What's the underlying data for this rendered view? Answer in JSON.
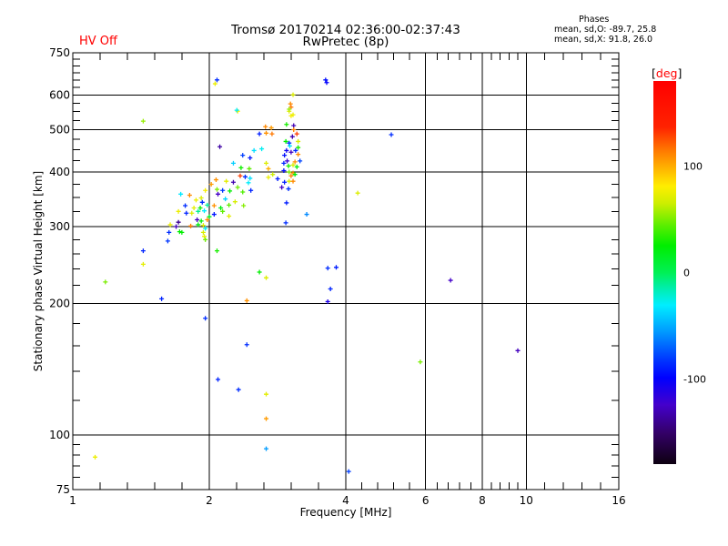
{
  "header": {
    "hv_status": "HV Off",
    "title": "Tromsø 20170214 02:36:00-02:37:43",
    "subtitle": "RwPretec (8p)",
    "stats": {
      "heading": "Phases",
      "line_o": "mean, sd,O: -89.7, 25.8",
      "line_x": "mean, sd,X:  91.8, 26.0"
    }
  },
  "colors": {
    "hv_status": "#ff0000",
    "colorbar_unit": "#ff0000",
    "axis": "#000000",
    "background": "#ffffff"
  },
  "chart_data": {
    "type": "scatter",
    "title": "Tromsø 20170214 02:36:00-02:37:43",
    "subtitle": "RwPretec (8p)",
    "xlabel": "Frequency [MHz]",
    "ylabel": "Stationary phase Virtual Height [km]",
    "xscale": "log",
    "yscale": "log",
    "xlim": [
      1,
      16
    ],
    "ylim": [
      75,
      750
    ],
    "grid": true,
    "xticks": [
      1,
      2,
      4,
      6,
      8,
      10,
      16
    ],
    "yticks": [
      750,
      600,
      500,
      400,
      300,
      200,
      100,
      75
    ],
    "xticks_minor": [
      1.149,
      1.32,
      1.516,
      1.741,
      2.297,
      2.639,
      3.031,
      3.482,
      4.34,
      4.7,
      5.1,
      5.53,
      6.36,
      6.73,
      7.13,
      7.55,
      8.37,
      8.76,
      9.16,
      9.58,
      10.99,
      12.08,
      13.28,
      14.6
    ],
    "yticks_minor": [
      80,
      85,
      90,
      95,
      120,
      140,
      160,
      180,
      220,
      240,
      260,
      280,
      325,
      350,
      375,
      425,
      450,
      475,
      525,
      550,
      575,
      625,
      650,
      675,
      700,
      725
    ],
    "colorbar": {
      "unit_open": "[",
      "unit": "deg",
      "unit_close": "]",
      "range": [
        -180,
        180
      ],
      "tick_values": [
        100,
        0,
        -100
      ],
      "tick_labels": [
        "100",
        "0",
        "-100"
      ],
      "stops": [
        [
          0.0,
          "#ff0000"
        ],
        [
          0.12,
          "#ff2200"
        ],
        [
          0.18,
          "#ff7700"
        ],
        [
          0.22,
          "#ffaa00"
        ],
        [
          0.275,
          "#ffee00"
        ],
        [
          0.32,
          "#ccee00"
        ],
        [
          0.38,
          "#55ee00"
        ],
        [
          0.43,
          "#00ee00"
        ],
        [
          0.5,
          "#00f055"
        ],
        [
          0.54,
          "#00eeaa"
        ],
        [
          0.585,
          "#00eeff"
        ],
        [
          0.655,
          "#0099ff"
        ],
        [
          0.73,
          "#0033ff"
        ],
        [
          0.775,
          "#0000ff"
        ],
        [
          0.845,
          "#4400cc"
        ],
        [
          0.92,
          "#330066"
        ],
        [
          1.0,
          "#0d0010"
        ]
      ]
    },
    "points_format": [
      "frequency_MHz",
      "virtual_height_km",
      "phase_deg"
    ],
    "points": [
      [
        2.08,
        650,
        -85
      ],
      [
        2.06,
        637,
        75
      ],
      [
        3.61,
        650,
        -95
      ],
      [
        3.63,
        641,
        -100
      ],
      [
        3.06,
        601,
        70
      ],
      [
        3.02,
        573,
        110
      ],
      [
        3.03,
        563,
        115
      ],
      [
        2.31,
        551,
        80
      ],
      [
        3.0,
        551,
        72
      ],
      [
        3.03,
        538,
        78
      ],
      [
        1.43,
        523,
        55
      ],
      [
        2.3,
        554,
        -30
      ],
      [
        3.0,
        557,
        55
      ],
      [
        3.06,
        541,
        75
      ],
      [
        2.66,
        508,
        110
      ],
      [
        2.74,
        505,
        105
      ],
      [
        2.96,
        514,
        30
      ],
      [
        3.07,
        511,
        -130
      ],
      [
        3.07,
        500,
        112
      ],
      [
        2.58,
        489,
        -90
      ],
      [
        2.67,
        491,
        108
      ],
      [
        2.75,
        489,
        115
      ],
      [
        2.95,
        470,
        25
      ],
      [
        3.0,
        466,
        -85
      ],
      [
        3.14,
        470,
        70
      ],
      [
        2.96,
        448,
        -105
      ],
      [
        3.03,
        444,
        -128
      ],
      [
        3.1,
        448,
        -88
      ],
      [
        3.14,
        439,
        110
      ],
      [
        2.11,
        457,
        -135
      ],
      [
        2.37,
        437,
        -80
      ],
      [
        2.46,
        431,
        -92
      ],
      [
        2.51,
        448,
        -35
      ],
      [
        2.61,
        452,
        -28
      ],
      [
        2.26,
        419,
        -40
      ],
      [
        2.35,
        409,
        28
      ],
      [
        2.45,
        407,
        45
      ],
      [
        2.67,
        419,
        70
      ],
      [
        2.7,
        407,
        100
      ],
      [
        2.92,
        419,
        -88
      ],
      [
        2.99,
        413,
        30
      ],
      [
        3.06,
        415,
        68
      ],
      [
        3.12,
        411,
        22
      ],
      [
        2.92,
        403,
        -95
      ],
      [
        3.0,
        400,
        50
      ],
      [
        3.06,
        398,
        105
      ],
      [
        2.34,
        392,
        130
      ],
      [
        2.4,
        390,
        -85
      ],
      [
        2.46,
        387,
        -35
      ],
      [
        2.7,
        389,
        75
      ],
      [
        3.03,
        392,
        112
      ],
      [
        3.09,
        395,
        25
      ],
      [
        2.07,
        384,
        108
      ],
      [
        2.18,
        381,
        72
      ],
      [
        2.26,
        379,
        -132
      ],
      [
        2.31,
        369,
        48
      ],
      [
        2.44,
        378,
        -30
      ],
      [
        2.93,
        379,
        -90
      ],
      [
        3.0,
        381,
        70
      ],
      [
        3.06,
        381,
        110
      ],
      [
        2.89,
        369,
        -125
      ],
      [
        2.99,
        366,
        -85
      ],
      [
        2.02,
        375,
        105
      ],
      [
        2.08,
        365,
        50
      ],
      [
        2.14,
        363,
        -82
      ],
      [
        2.22,
        362,
        25
      ],
      [
        2.37,
        360,
        42
      ],
      [
        2.47,
        363,
        -88
      ],
      [
        1.73,
        356,
        -32
      ],
      [
        1.81,
        354,
        110
      ],
      [
        1.87,
        345,
        75
      ],
      [
        1.92,
        349,
        70
      ],
      [
        1.96,
        363,
        78
      ],
      [
        1.93,
        341,
        -85
      ],
      [
        1.98,
        336,
        -12
      ],
      [
        2.05,
        335,
        108
      ],
      [
        2.12,
        331,
        20
      ],
      [
        2.21,
        336,
        45
      ],
      [
        2.38,
        335,
        52
      ],
      [
        2.96,
        340,
        -90
      ],
      [
        1.77,
        335,
        -85
      ],
      [
        1.85,
        331,
        72
      ],
      [
        1.91,
        331,
        28
      ],
      [
        1.71,
        325,
        75
      ],
      [
        1.78,
        322,
        -88
      ],
      [
        1.83,
        322,
        70
      ],
      [
        1.89,
        325,
        -10
      ],
      [
        1.95,
        326,
        -30
      ],
      [
        2.05,
        320,
        -92
      ],
      [
        2.14,
        325,
        45
      ],
      [
        2.21,
        317,
        72
      ],
      [
        1.88,
        311,
        -128
      ],
      [
        1.92,
        309,
        25
      ],
      [
        1.98,
        311,
        110
      ],
      [
        1.71,
        307,
        -140
      ],
      [
        1.64,
        303,
        75
      ],
      [
        1.69,
        300,
        -130
      ],
      [
        1.89,
        303,
        22
      ],
      [
        1.94,
        302,
        70
      ],
      [
        1.96,
        297,
        -28
      ],
      [
        1.94,
        291,
        68
      ],
      [
        1.95,
        285,
        75
      ],
      [
        1.96,
        280,
        48
      ],
      [
        1.72,
        292,
        25
      ],
      [
        3.28,
        320,
        -60
      ],
      [
        2.95,
        306,
        -85
      ],
      [
        1.63,
        291,
        -85
      ],
      [
        1.74,
        291,
        25
      ],
      [
        1.62,
        278,
        -82
      ],
      [
        1.43,
        264,
        -88
      ],
      [
        1.43,
        246,
        72
      ],
      [
        1.18,
        224,
        50
      ],
      [
        2.08,
        264,
        30
      ],
      [
        2.58,
        236,
        25
      ],
      [
        2.67,
        229,
        70
      ],
      [
        3.65,
        241,
        -85
      ],
      [
        3.81,
        242,
        -90
      ],
      [
        3.7,
        216,
        -88
      ],
      [
        3.65,
        202,
        -110
      ],
      [
        1.57,
        205,
        -88
      ],
      [
        1.96,
        185,
        -85
      ],
      [
        2.42,
        203,
        108
      ],
      [
        2.42,
        161,
        -85
      ],
      [
        2.09,
        134,
        -88
      ],
      [
        2.32,
        127,
        -85
      ],
      [
        2.67,
        124,
        72
      ],
      [
        2.67,
        109,
        105
      ],
      [
        2.67,
        93,
        -55
      ],
      [
        1.12,
        89,
        75
      ],
      [
        5.04,
        487,
        -85
      ],
      [
        4.25,
        358,
        70
      ],
      [
        6.81,
        226,
        -125
      ],
      [
        9.58,
        156,
        -128
      ],
      [
        5.84,
        147,
        50
      ],
      [
        4.06,
        82.5,
        -80
      ],
      [
        3.05,
        482,
        -132
      ],
      [
        3.12,
        489,
        130
      ],
      [
        3.01,
        459,
        -35
      ],
      [
        3.09,
        422,
        108
      ],
      [
        2.97,
        424,
        -120
      ],
      [
        3.14,
        455,
        30
      ],
      [
        2.93,
        437,
        -95
      ],
      [
        3.17,
        424,
        -78
      ],
      [
        2.17,
        347,
        -38
      ],
      [
        2.28,
        342,
        68
      ],
      [
        2.0,
        316,
        18
      ],
      [
        1.82,
        301,
        112
      ],
      [
        2.09,
        356,
        -126
      ],
      [
        2.76,
        395,
        65
      ],
      [
        2.83,
        386,
        -90
      ]
    ]
  }
}
